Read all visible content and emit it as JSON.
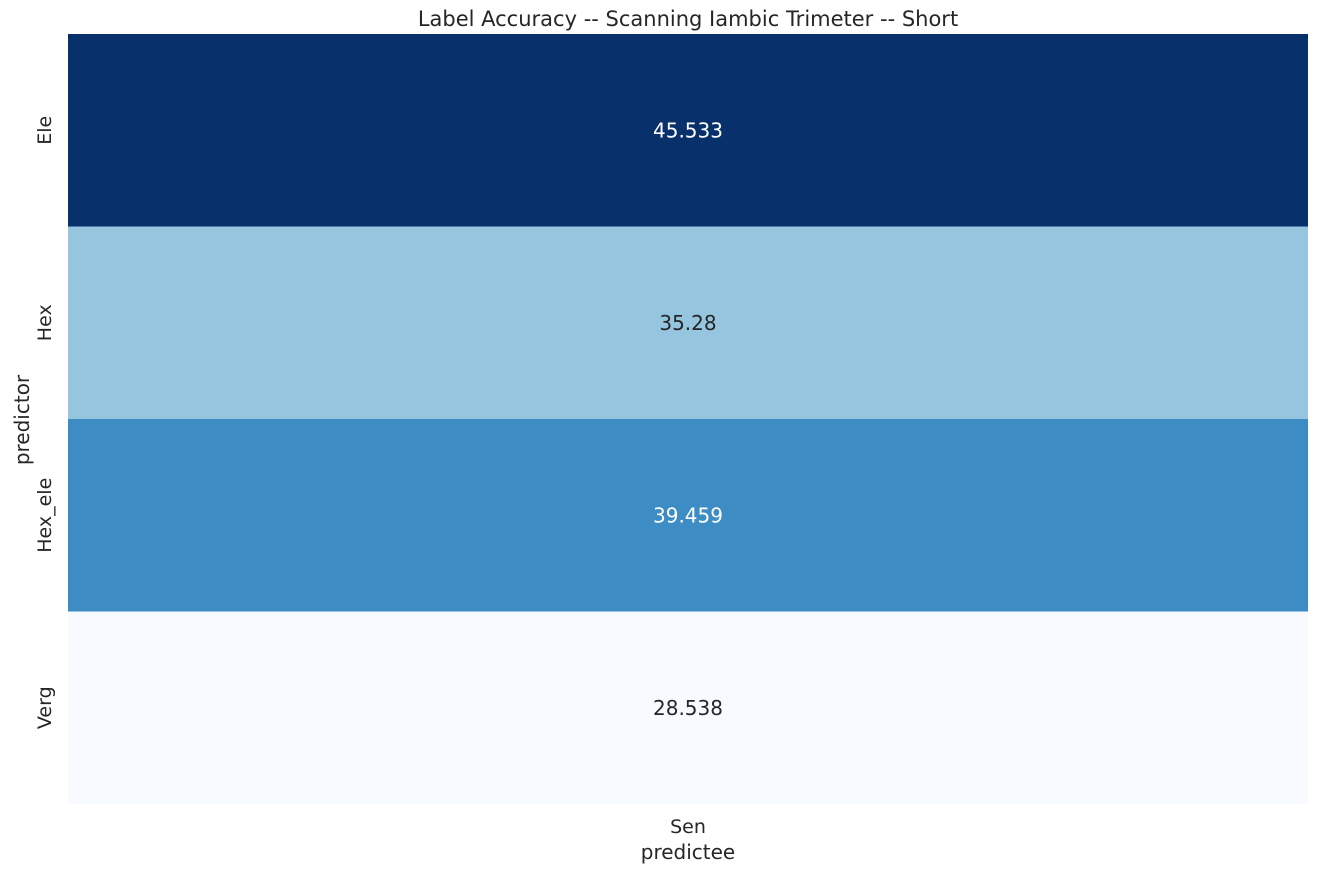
{
  "chart_data": {
    "type": "heatmap",
    "title": "Label Accuracy -- Scanning Iambic Trimeter -- Short",
    "xlabel": "predictee",
    "ylabel": "predictor",
    "x_categories": [
      "Sen"
    ],
    "y_categories": [
      "Ele",
      "Hex",
      "Hex_ele",
      "Verg"
    ],
    "values": [
      [
        45.533
      ],
      [
        35.28
      ],
      [
        39.459
      ],
      [
        28.538
      ]
    ],
    "value_labels": [
      "45.533",
      "35.28",
      "39.459",
      "28.538"
    ],
    "colormap": "Blues",
    "colorbar": false,
    "grid": false,
    "colors": {
      "min": "#f7fbff",
      "max": "#08306b",
      "text_dark": "#262626",
      "text_light": "#ffffff"
    }
  }
}
